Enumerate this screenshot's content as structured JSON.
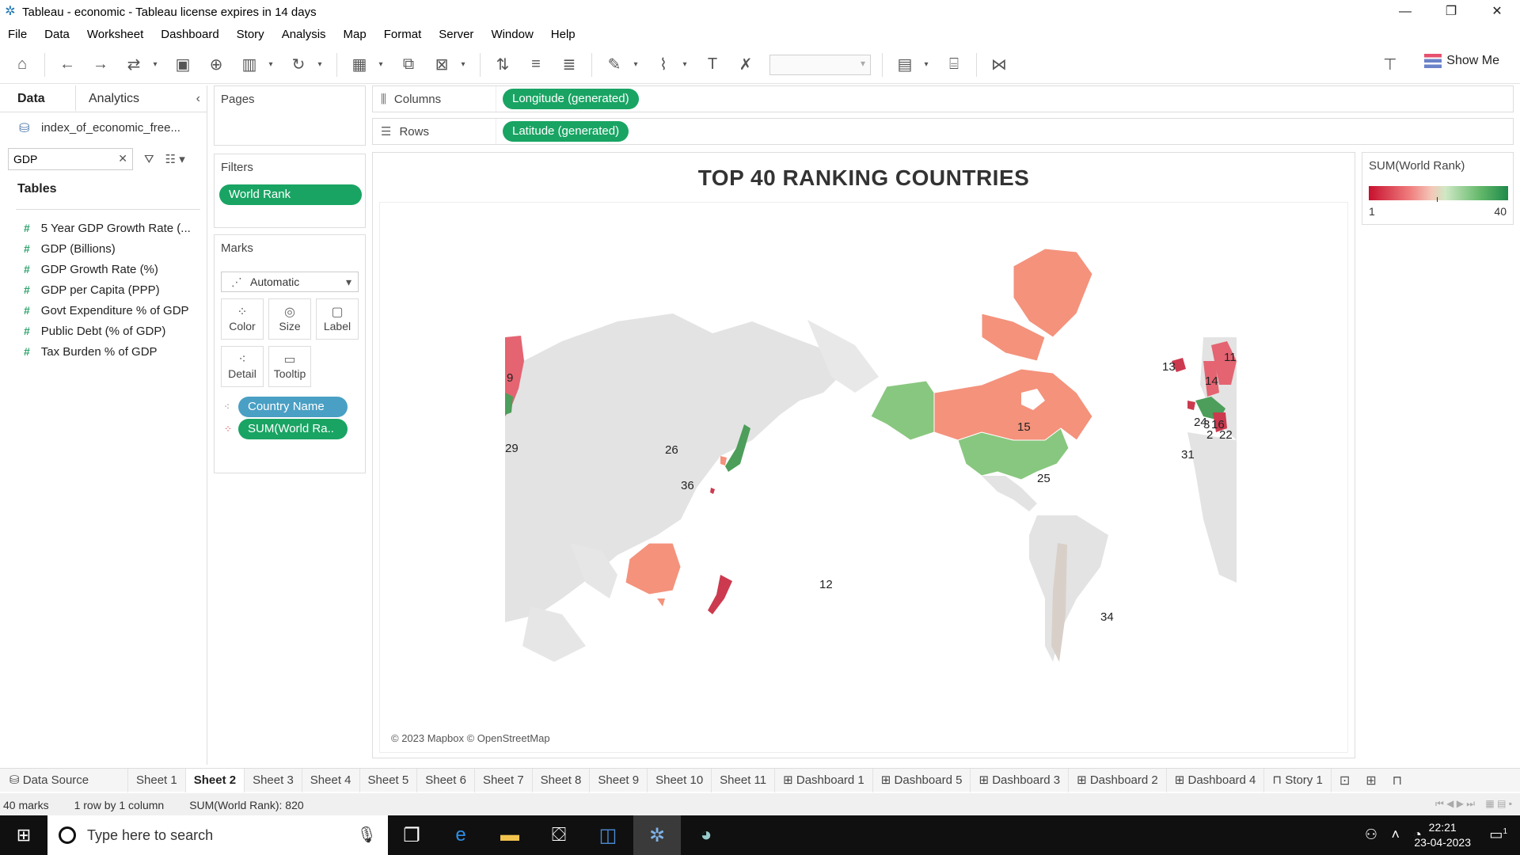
{
  "window": {
    "title": "Tableau - economic - Tableau license expires in 14 days",
    "controls": [
      "—",
      "❐",
      "✕"
    ]
  },
  "menu": [
    "File",
    "Data",
    "Worksheet",
    "Dashboard",
    "Story",
    "Analysis",
    "Map",
    "Format",
    "Server",
    "Window",
    "Help"
  ],
  "toolbar": {
    "show_me": "Show Me"
  },
  "left_pane": {
    "tabs": [
      "Data",
      "Analytics"
    ],
    "datasource": "index_of_economic_free...",
    "search_value": "GDP",
    "tables_heading": "Tables",
    "fields": [
      "5 Year GDP Growth Rate (...",
      "GDP (Billions)",
      "GDP Growth Rate (%)",
      "GDP per Capita (PPP)",
      "Govt Expenditure % of GDP",
      "Public Debt (% of GDP)",
      "Tax Burden % of GDP"
    ]
  },
  "cards": {
    "pages": "Pages",
    "filters": "Filters",
    "filter_pill": "World Rank",
    "marks": "Marks",
    "mark_type": "Automatic",
    "mark_buttons": [
      "Color",
      "Size",
      "Label",
      "Detail",
      "Tooltip"
    ],
    "mark_pills": [
      "Country Name",
      "SUM(World Ra.."
    ]
  },
  "shelves": {
    "columns_label": "Columns",
    "columns_pill": "Longitude (generated)",
    "rows_label": "Rows",
    "rows_pill": "Latitude (generated)"
  },
  "viz": {
    "title": "TOP  40 RANKING COUNTRIES",
    "attribution": "© 2023 Mapbox © OpenStreetMap",
    "labels": {
      "canada": "15",
      "usa": "25",
      "australia": "12",
      "ireland": "13",
      "scand": "11",
      "balt": "14",
      "uk": "9",
      "chile": "34",
      "korea": "26",
      "taiwan": "36",
      "misc1": "29",
      "misc2": "31",
      "eu1": "24",
      "eu2": "16",
      "eu3": "22",
      "eu4": "2",
      "eu5": "3"
    }
  },
  "legend": {
    "title": "SUM(World Rank)",
    "min": "1",
    "max": "40",
    "colors": [
      "#c8102e",
      "#f4c7b8",
      "#1e8a4a"
    ]
  },
  "sheet_tabs": {
    "data_source": "Data Source",
    "sheets": [
      "Sheet 1",
      "Sheet 2",
      "Sheet 3",
      "Sheet 4",
      "Sheet 5",
      "Sheet 6",
      "Sheet 7",
      "Sheet 8",
      "Sheet 9",
      "Sheet 10",
      "Sheet 11"
    ],
    "dashboards": [
      "Dashboard 1",
      "Dashboard 5",
      "Dashboard 3",
      "Dashboard 2",
      "Dashboard 4"
    ],
    "story": "Story 1"
  },
  "status": {
    "marks": "40 marks",
    "dims": "1 row by 1 column",
    "sum": "SUM(World Rank): 820"
  },
  "taskbar": {
    "search_placeholder": "Type here to search",
    "time": "22:21",
    "date": "23-04-2023",
    "notif": "1"
  }
}
